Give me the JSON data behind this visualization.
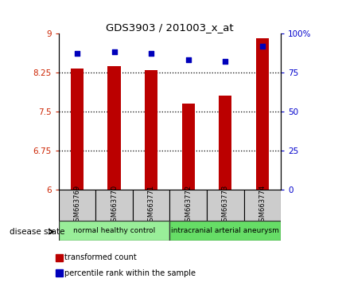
{
  "title": "GDS3903 / 201003_x_at",
  "samples": [
    "GSM663769",
    "GSM663770",
    "GSM663771",
    "GSM663772",
    "GSM663773",
    "GSM663774"
  ],
  "transformed_counts": [
    8.33,
    8.37,
    8.3,
    7.65,
    7.8,
    8.9
  ],
  "percentile_ranks": [
    87,
    88,
    87,
    83,
    82,
    92
  ],
  "ylim_left": [
    6,
    9
  ],
  "ylim_right": [
    0,
    100
  ],
  "yticks_left": [
    6,
    6.75,
    7.5,
    8.25,
    9
  ],
  "yticks_right": [
    0,
    25,
    50,
    75,
    100
  ],
  "ytick_labels_right": [
    "0",
    "25",
    "50",
    "75",
    "100%"
  ],
  "bar_color": "#bb0000",
  "dot_color": "#0000bb",
  "groups": [
    {
      "label": "normal healthy control",
      "samples": [
        0,
        1,
        2
      ],
      "color": "#99ee99"
    },
    {
      "label": "intracranial arterial aneurysm",
      "samples": [
        3,
        4,
        5
      ],
      "color": "#66dd66"
    }
  ],
  "disease_state_label": "disease state",
  "legend_items": [
    {
      "color": "#bb0000",
      "label": "transformed count"
    },
    {
      "color": "#0000bb",
      "label": "percentile rank within the sample"
    }
  ],
  "background_color": "#ffffff",
  "tick_label_color_left": "#cc2200",
  "tick_label_color_right": "#0000cc",
  "grid_yticks": [
    6.75,
    7.5,
    8.25
  ]
}
